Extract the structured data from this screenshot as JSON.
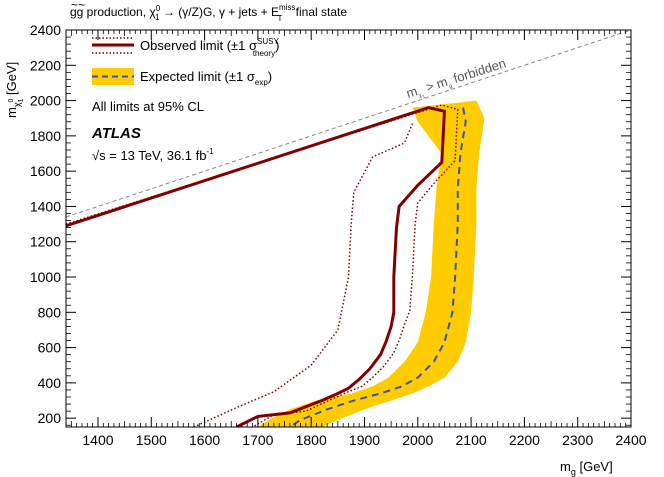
{
  "chart_data": {
    "type": "line",
    "title": "g̃g̃ production, χ̃⁰₁ → (γ/Z)G̃, γ + jets + E_T^miss final state",
    "title_parts": {
      "main": "gg production, ",
      "chi": "χ",
      "chi_sup": "0",
      "chi_sub": "1",
      "arrow": " → (γ/Z)",
      "gravitino": "G",
      "rest": ", γ + jets + E",
      "met_sub": "T",
      "met_sup": "miss",
      "tail": " final state"
    },
    "xlabel": "m_g̃ [GeV]",
    "xlabel_parts": {
      "m": "m",
      "sub": "g",
      "unit": " [GeV]"
    },
    "ylabel": "m_χ̃⁰₁ [GeV]",
    "ylabel_parts": {
      "m": "m",
      "sub": "χ",
      "subsub": "1",
      "sup": "0",
      "unit": " [GeV]"
    },
    "xlim": [
      1340,
      2400
    ],
    "ylim": [
      150,
      2400
    ],
    "xticks": [
      1400,
      1500,
      1600,
      1700,
      1800,
      1900,
      2000,
      2100,
      2200,
      2300,
      2400
    ],
    "yticks": [
      200,
      400,
      600,
      800,
      1000,
      1200,
      1400,
      1600,
      1800,
      2000,
      2200,
      2400
    ],
    "legend": {
      "observed": {
        "text": "Observed limit (±1 σ",
        "sup": "SUSY",
        "sub": "theory",
        "close": ")"
      },
      "expected": {
        "text": "Expected limit (±1 σ",
        "sub": "exp",
        "close": ")"
      },
      "cl_note": "All limits at 95% CL",
      "atlas": "ATLAS",
      "lumi": "√s = 13 TeV, 36.1 fb",
      "lumi_sup": "-1"
    },
    "forbidden_label": "m_χ̃⁰₁ > m_g̃ forbidden",
    "forbidden_parts": {
      "m": "m",
      "sub": "χ",
      "subsub": "1",
      "sup": "0",
      "gt": " > m",
      "sub2": "g",
      "rest": " forbidden"
    },
    "colors": {
      "observed": "#800000",
      "expected_line": "#3a4fb8",
      "expected_band": "#ffcc00",
      "diagonal": "#888888"
    },
    "series": [
      {
        "name": "Observed",
        "style": "solid",
        "x": [
          1340,
          2020,
          2050,
          2045,
          2000,
          1965,
          1960,
          1955,
          1955,
          1950,
          1940,
          1930,
          1910,
          1890,
          1870,
          1850,
          1820,
          1760,
          1700,
          1660
        ],
        "y": [
          1290,
          1960,
          1940,
          1650,
          1520,
          1400,
          1280,
          1000,
          800,
          720,
          630,
          560,
          480,
          420,
          370,
          340,
          300,
          230,
          210,
          150
        ]
      },
      {
        "name": "Observed +1σ theory",
        "style": "dotted",
        "x": [
          1340,
          2045,
          2075,
          2070,
          2030,
          2000,
          1995,
          1990,
          1985,
          1975,
          1965,
          1955,
          1935,
          1915,
          1895,
          1870,
          1840,
          1790,
          1730,
          1690
        ],
        "y": [
          1300,
          1975,
          1950,
          1660,
          1530,
          1420,
          1300,
          1010,
          810,
          730,
          640,
          570,
          490,
          430,
          380,
          350,
          310,
          240,
          220,
          150
        ]
      },
      {
        "name": "Observed -1σ theory",
        "style": "dotted",
        "x": [
          1990,
          1975,
          1915,
          1880,
          1875,
          1870,
          1850,
          1800,
          1730,
          1660,
          1580
        ],
        "y": [
          1870,
          1760,
          1680,
          1480,
          1300,
          1000,
          700,
          500,
          350,
          260,
          150
        ]
      },
      {
        "name": "Expected",
        "style": "dashed",
        "x": [
          2085,
          2090,
          2080,
          2075,
          2075,
          2070,
          2065,
          2050,
          2030,
          2000,
          1970,
          1930,
          1880,
          1830,
          1780,
          1760
        ],
        "y": [
          1960,
          1880,
          1700,
          1500,
          1300,
          1000,
          800,
          630,
          520,
          430,
          380,
          340,
          300,
          250,
          190,
          150
        ]
      }
    ],
    "expected_band": {
      "upper_x": [
        2110,
        2125,
        2115,
        2110,
        2110,
        2105,
        2100,
        2090,
        2075,
        2050,
        2020,
        1990,
        1950,
        1900,
        1850,
        1820
      ],
      "upper_y": [
        2000,
        1900,
        1700,
        1500,
        1300,
        1000,
        800,
        630,
        520,
        430,
        380,
        340,
        300,
        250,
        190,
        150
      ],
      "lower_x": [
        1990,
        2000,
        2045,
        2035,
        2030,
        2025,
        2015,
        2000,
        1975,
        1945,
        1915,
        1875,
        1810,
        1760,
        1720,
        1700
      ],
      "lower_y": [
        1960,
        1880,
        1700,
        1500,
        1300,
        1000,
        800,
        630,
        520,
        430,
        380,
        340,
        300,
        250,
        190,
        150
      ]
    }
  }
}
